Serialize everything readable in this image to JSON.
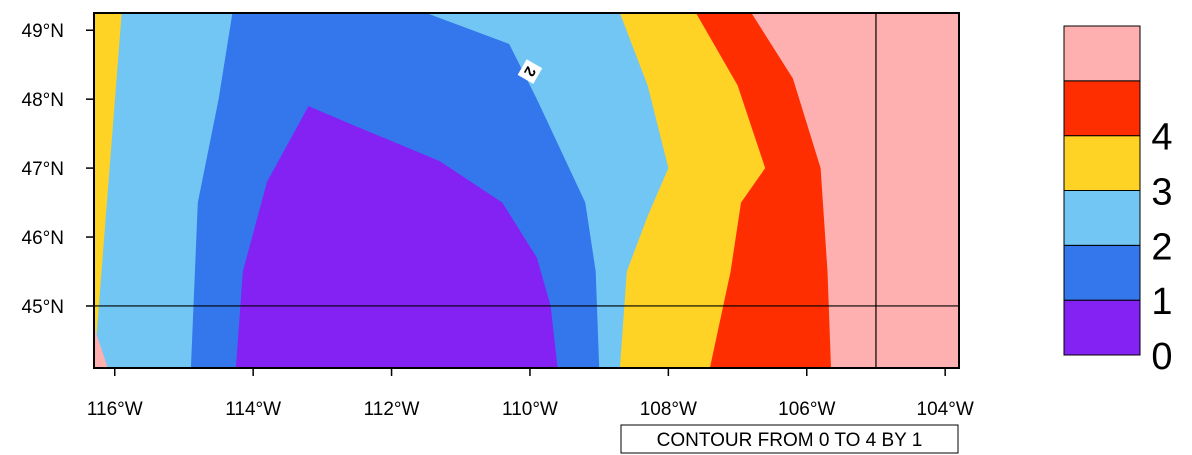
{
  "chart_data": {
    "type": "heatmap",
    "subtype": "filled-contour-map",
    "lon_range": [
      -116.3,
      -103.8
    ],
    "lat_range": [
      44.1,
      49.25
    ],
    "x_ticks": [
      {
        "value": -116,
        "label": "116°W"
      },
      {
        "value": -114,
        "label": "114°W"
      },
      {
        "value": -112,
        "label": "112°W"
      },
      {
        "value": -110,
        "label": "110°W"
      },
      {
        "value": -108,
        "label": "108°W"
      },
      {
        "value": -106,
        "label": "106°W"
      },
      {
        "value": -104,
        "label": "104°W"
      }
    ],
    "y_ticks": [
      {
        "value": 45,
        "label": "45°N"
      },
      {
        "value": 46,
        "label": "46°N"
      },
      {
        "value": 47,
        "label": "47°N"
      },
      {
        "value": 48,
        "label": "48°N"
      },
      {
        "value": 49,
        "label": "49°N"
      }
    ],
    "levels": [
      {
        "label": "0",
        "color": "#8322f2"
      },
      {
        "label": "1",
        "color": "#3477ec"
      },
      {
        "label": "2",
        "color": "#72c6f3"
      },
      {
        "label": "3",
        "color": "#fed325"
      },
      {
        "label": "4",
        "color": "#fe2e00"
      },
      {
        "label": "",
        "color": "#feb0b0"
      }
    ],
    "regions": [
      {
        "level": 5,
        "points": [
          [
            -116.3,
            49.25
          ],
          [
            -103.8,
            49.25
          ],
          [
            -103.8,
            44.1
          ],
          [
            -116.3,
            44.1
          ]
        ]
      },
      {
        "level": 4,
        "points": [
          [
            -116.3,
            49.25
          ],
          [
            -106.8,
            49.25
          ],
          [
            -106.2,
            48.3
          ],
          [
            -105.8,
            47
          ],
          [
            -105.7,
            45.5
          ],
          [
            -105.65,
            44.1
          ],
          [
            -116.3,
            44.1
          ]
        ]
      },
      {
        "level": 3,
        "points": [
          [
            -116.3,
            49.25
          ],
          [
            -107.6,
            49.25
          ],
          [
            -107.0,
            48.2
          ],
          [
            -106.6,
            47
          ],
          [
            -106.95,
            46.5
          ],
          [
            -107.1,
            45.5
          ],
          [
            -107.4,
            44.1
          ],
          [
            -116.3,
            44.1
          ]
        ]
      },
      {
        "level": 2,
        "points": [
          [
            -115.9,
            49.25
          ],
          [
            -108.7,
            49.25
          ],
          [
            -108.3,
            48.2
          ],
          [
            -108.0,
            47
          ],
          [
            -108.3,
            46.3
          ],
          [
            -108.6,
            45.5
          ],
          [
            -108.7,
            44.1
          ],
          [
            -116.3,
            44.1
          ]
        ]
      },
      {
        "level": 1,
        "points": [
          [
            -114.3,
            49.25
          ],
          [
            -111.5,
            49.25
          ],
          [
            -110.3,
            48.8
          ],
          [
            -109.9,
            48
          ],
          [
            -109.2,
            46.5
          ],
          [
            -109.05,
            45.5
          ],
          [
            -109.0,
            44.1
          ],
          [
            -114.9,
            44.1
          ],
          [
            -114.8,
            46.5
          ],
          [
            -114.5,
            48
          ]
        ]
      },
      {
        "level": 0,
        "points": [
          [
            -113.2,
            47.9
          ],
          [
            -112.5,
            47.6
          ],
          [
            -111.3,
            47.1
          ],
          [
            -110.4,
            46.5
          ],
          [
            -109.9,
            45.7
          ],
          [
            -109.7,
            45
          ],
          [
            -109.6,
            44.1
          ],
          [
            -114.25,
            44.1
          ],
          [
            -114.15,
            45.5
          ],
          [
            -113.8,
            46.8
          ]
        ]
      },
      {
        "level": 0,
        "points": [
          [
            -113.2,
            45.8
          ],
          [
            -112.2,
            45
          ],
          [
            -111.3,
            44.1
          ],
          [
            -113.7,
            44.1
          ],
          [
            -113.5,
            44.9
          ]
        ]
      },
      {
        "level": 5,
        "points": [
          [
            -116.3,
            44.7
          ],
          [
            -116.1,
            44.1
          ],
          [
            -116.3,
            44.1
          ]
        ]
      }
    ],
    "reference_lines": {
      "lat": 45,
      "lon": -105
    },
    "contour_labels": [
      {
        "text": "2",
        "lon": -110.0,
        "lat": 48.4
      }
    ],
    "info_label": "CONTOUR FROM 0 TO 4 BY 1"
  }
}
